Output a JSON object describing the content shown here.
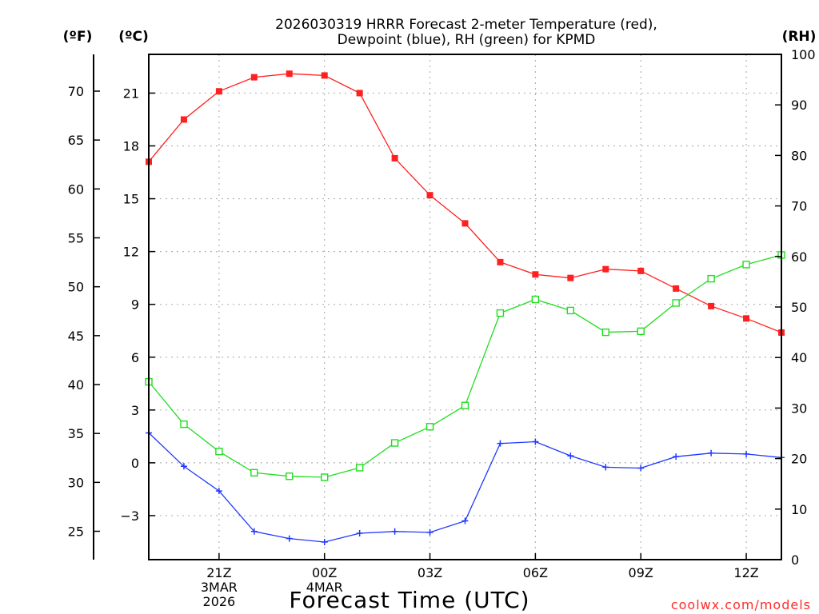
{
  "chart_data": {
    "type": "line",
    "title": [
      "2026030319 HRRR Forecast 2-meter Temperature (red),",
      "Dewpoint (blue), RH (green) for KPMD"
    ],
    "xlabel": "Forecast Time (UTC)",
    "watermark": "coolwx.com/models",
    "units": {
      "fahrenheit": "(ºF)",
      "celsius": "(ºC)",
      "rh": "(RH)"
    },
    "x": [
      19,
      20,
      21,
      22,
      23,
      24,
      25,
      26,
      27,
      28,
      29,
      30,
      31,
      32,
      33,
      34,
      35,
      36,
      37
    ],
    "xlim": [
      19,
      37
    ],
    "x_ticks": [
      {
        "x": 21,
        "lines": [
          "21Z",
          "3MAR",
          "2026"
        ]
      },
      {
        "x": 24,
        "lines": [
          "00Z",
          "4MAR"
        ]
      },
      {
        "x": 27,
        "lines": [
          "03Z"
        ]
      },
      {
        "x": 30,
        "lines": [
          "06Z"
        ]
      },
      {
        "x": 33,
        "lines": [
          "09Z"
        ]
      },
      {
        "x": 36,
        "lines": [
          "12Z"
        ]
      }
    ],
    "celsius_axis": {
      "lim": [
        -5.5,
        23.2
      ],
      "ticks": [
        -3,
        0,
        3,
        6,
        9,
        12,
        15,
        18,
        21
      ],
      "labels": [
        "−3",
        "0",
        "3",
        "6",
        "9",
        "12",
        "15",
        "18",
        "21"
      ]
    },
    "fahrenheit_axis": {
      "ticks": [
        25,
        30,
        35,
        40,
        45,
        50,
        55,
        60,
        65,
        70
      ],
      "labels": [
        "25",
        "30",
        "35",
        "40",
        "45",
        "50",
        "55",
        "60",
        "65",
        "70"
      ]
    },
    "rh_axis": {
      "lim": [
        0,
        100
      ],
      "ticks": [
        0,
        10,
        20,
        30,
        40,
        50,
        60,
        70,
        80,
        90,
        100
      ],
      "labels": [
        "0",
        "10",
        "20",
        "30",
        "40",
        "50",
        "60",
        "70",
        "80",
        "90",
        "100"
      ]
    },
    "series": [
      {
        "name": "Temperature",
        "axis": "celsius",
        "color": "#ff2020",
        "marker": "filled-square",
        "values": [
          17.1,
          19.5,
          21.1,
          21.9,
          22.1,
          22.0,
          21.0,
          17.3,
          15.2,
          13.6,
          11.4,
          10.7,
          10.5,
          11.0,
          10.9,
          9.9,
          8.9,
          8.2,
          7.4
        ]
      },
      {
        "name": "Dewpoint",
        "axis": "celsius",
        "color": "#2038ff",
        "marker": "plus",
        "values": [
          1.7,
          -0.2,
          -1.6,
          -3.9,
          -4.3,
          -4.5,
          -4.0,
          -3.9,
          -3.95,
          -3.3,
          1.1,
          1.2,
          0.4,
          -0.25,
          -0.3,
          0.35,
          0.55,
          0.5,
          0.3
        ]
      },
      {
        "name": "RH",
        "axis": "rh",
        "color": "#20dd20",
        "marker": "open-square",
        "values": [
          35.2,
          26.8,
          21.4,
          17.2,
          16.5,
          16.3,
          18.2,
          23.1,
          26.3,
          30.5,
          48.8,
          51.5,
          49.3,
          45.0,
          45.2,
          50.8,
          55.6,
          58.4,
          60.3
        ]
      }
    ]
  }
}
